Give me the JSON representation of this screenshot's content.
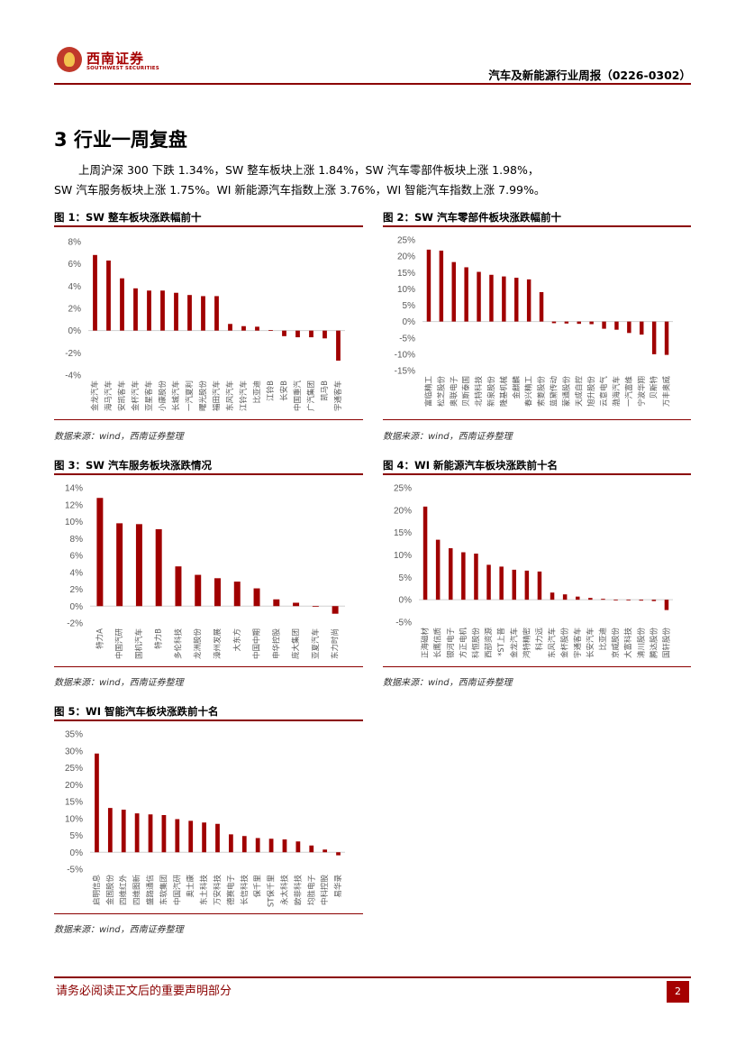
{
  "header": {
    "logo_cn": "西南证券",
    "logo_en": "SOUTHWEST SECURITIES",
    "report_title": "汽车及新能源行业周报（0226-0302）"
  },
  "section": {
    "title": "3 行业一周复盘"
  },
  "paragraph": {
    "line1": "上周沪深 300 下跌 1.34%，SW 整车板块上涨 1.84%，SW 汽车零部件板块上涨 1.98%，",
    "line2": "SW 汽车服务板块上涨 1.75%。WI 新能源汽车指数上涨 3.76%，WI 智能汽车指数上涨 7.99%。"
  },
  "colors": {
    "bar": "#a00000",
    "accent": "#8b0000",
    "axis_text": "#595959"
  },
  "footer": {
    "disclaimer": "请务必阅读正文后的重要声明部分",
    "page_number": "2"
  },
  "chart_data": [
    {
      "id": "fig1",
      "type": "bar",
      "title": "图 1：SW 整车板块涨跌幅前十",
      "source": "数据来源：wind，西南证券整理",
      "categories": [
        "金龙汽车",
        "海马汽车",
        "安凯客车",
        "金杯汽车",
        "亚星客车",
        "小康股份",
        "长城汽车",
        "一汽夏利",
        "曙光股份",
        "福田汽车",
        "东风汽车",
        "江铃汽车",
        "比亚迪",
        "江铃B",
        "长安B",
        "中国重汽",
        "广汽集团",
        "凯马B",
        "宇通客车"
      ],
      "values": [
        6.8,
        6.3,
        4.7,
        3.8,
        3.6,
        3.6,
        3.4,
        3.2,
        3.1,
        3.1,
        0.6,
        0.4,
        0.35,
        0.05,
        -0.5,
        -0.6,
        -0.6,
        -0.7,
        -2.7
      ],
      "yticks": [
        -4,
        -2,
        0,
        2,
        4,
        6,
        8
      ],
      "ytick_labels": [
        "-4%",
        "-2%",
        "0%",
        "2%",
        "4%",
        "6%",
        "8%"
      ],
      "ylim": [
        -4,
        8
      ]
    },
    {
      "id": "fig2",
      "type": "bar",
      "title": "图 2：SW 汽车零部件板块涨跌幅前十",
      "source": "数据来源：wind，西南证券整理",
      "categories": [
        "富临精工",
        "松芝股份",
        "奥联电子",
        "贝斯泰国",
        "北特科技",
        "新泉股份",
        "隆基机械",
        "金麒麟",
        "春兴精工",
        "索菱股份",
        "蓝黛传动",
        "蒙通股份",
        "天成自控",
        "旭升股份",
        "云意电气",
        "渤海汽车",
        "一汽富维",
        "宁波华翔",
        "贝斯特",
        "万丰奥威"
      ],
      "values": [
        22,
        21.7,
        18.2,
        16.6,
        15.2,
        14.3,
        13.8,
        13.4,
        12.9,
        9.0,
        -0.5,
        -0.6,
        -0.7,
        -0.8,
        -2.2,
        -2.5,
        -3.5,
        -4.0,
        -10,
        -10.2
      ],
      "yticks": [
        -15,
        -10,
        -5,
        0,
        5,
        10,
        15,
        20,
        25
      ],
      "ytick_labels": [
        "-15%",
        "-10%",
        "-5%",
        "0%",
        "5%",
        "10%",
        "15%",
        "20%",
        "25%"
      ],
      "ylim": [
        -15,
        25
      ]
    },
    {
      "id": "fig3",
      "type": "bar",
      "title": "图 3：SW 汽车服务板块涨跌情况",
      "source": "数据来源：wind，西南证券整理",
      "categories": [
        "特力A",
        "中国汽研",
        "国机汽车",
        "特力B",
        "多伦科技",
        "龙洲股份",
        "漳州发展",
        "大东方",
        "中国中期",
        "申华控股",
        "庞大集团",
        "亚夏汽车",
        "东力时尚"
      ],
      "values": [
        12.8,
        9.8,
        9.7,
        9.1,
        4.7,
        3.7,
        3.3,
        2.9,
        2.1,
        0.8,
        0.4,
        0.0,
        -0.9
      ],
      "yticks": [
        -2,
        0,
        2,
        4,
        6,
        8,
        10,
        12,
        14
      ],
      "ytick_labels": [
        "-2%",
        "0%",
        "2%",
        "4%",
        "6%",
        "8%",
        "10%",
        "12%",
        "14%"
      ],
      "ylim": [
        -2,
        14
      ]
    },
    {
      "id": "fig4",
      "type": "bar",
      "title": "图 4：WI 新能源汽车板块涨跌前十名",
      "source": "数据来源：wind，西南证券整理",
      "categories": [
        "正海磁材",
        "长鹰信质",
        "银河电子",
        "方正电机",
        "科恒股份",
        "西部资源",
        "*ST上普",
        "金龙汽车",
        "鸿特精密",
        "科力远",
        "东风汽车",
        "金杯股份",
        "宇通客车",
        "长安汽车",
        "比亚迪",
        "京威股份",
        "大富科技",
        "清川股份",
        "腾达股份",
        "国轩股份"
      ],
      "values": [
        20.8,
        13.4,
        11.5,
        10.6,
        10.3,
        7.8,
        7.4,
        6.7,
        6.5,
        6.3,
        1.6,
        1.2,
        0.7,
        0.4,
        0.2,
        0.0,
        -0.1,
        -0.2,
        -0.3,
        -2.3
      ],
      "yticks": [
        -5,
        0,
        5,
        10,
        15,
        20,
        25
      ],
      "ytick_labels": [
        "-5%",
        "0%",
        "5%",
        "10%",
        "15%",
        "20%",
        "25%"
      ],
      "ylim": [
        -5,
        25
      ]
    },
    {
      "id": "fig5",
      "type": "bar",
      "title": "图 5：WI 智能汽车板块涨跌前十名",
      "source": "数据来源：wind，西南证券整理",
      "categories": [
        "启明信息",
        "金固股份",
        "四维红外",
        "四维图新",
        "盛路通信",
        "东软集团",
        "中国汽研",
        "奥士康",
        "东土科技",
        "万安科技",
        "德赛电子",
        "长信科技",
        "保千里",
        "ST保千里",
        "永太科技",
        "欧菲科技",
        "均胜电子",
        "中科控股",
        "易华录"
      ],
      "values": [
        29.2,
        13.1,
        12.6,
        11.5,
        11.2,
        11.0,
        9.8,
        9.3,
        8.8,
        8.4,
        5.3,
        4.8,
        4.2,
        4.0,
        3.8,
        3.2,
        2.0,
        0.8,
        -0.9
      ],
      "yticks": [
        -5,
        0,
        5,
        10,
        15,
        20,
        25,
        30,
        35
      ],
      "ytick_labels": [
        "-5%",
        "0%",
        "5%",
        "10%",
        "15%",
        "20%",
        "25%",
        "30%",
        "35%"
      ],
      "ylim": [
        -5,
        35
      ]
    }
  ]
}
